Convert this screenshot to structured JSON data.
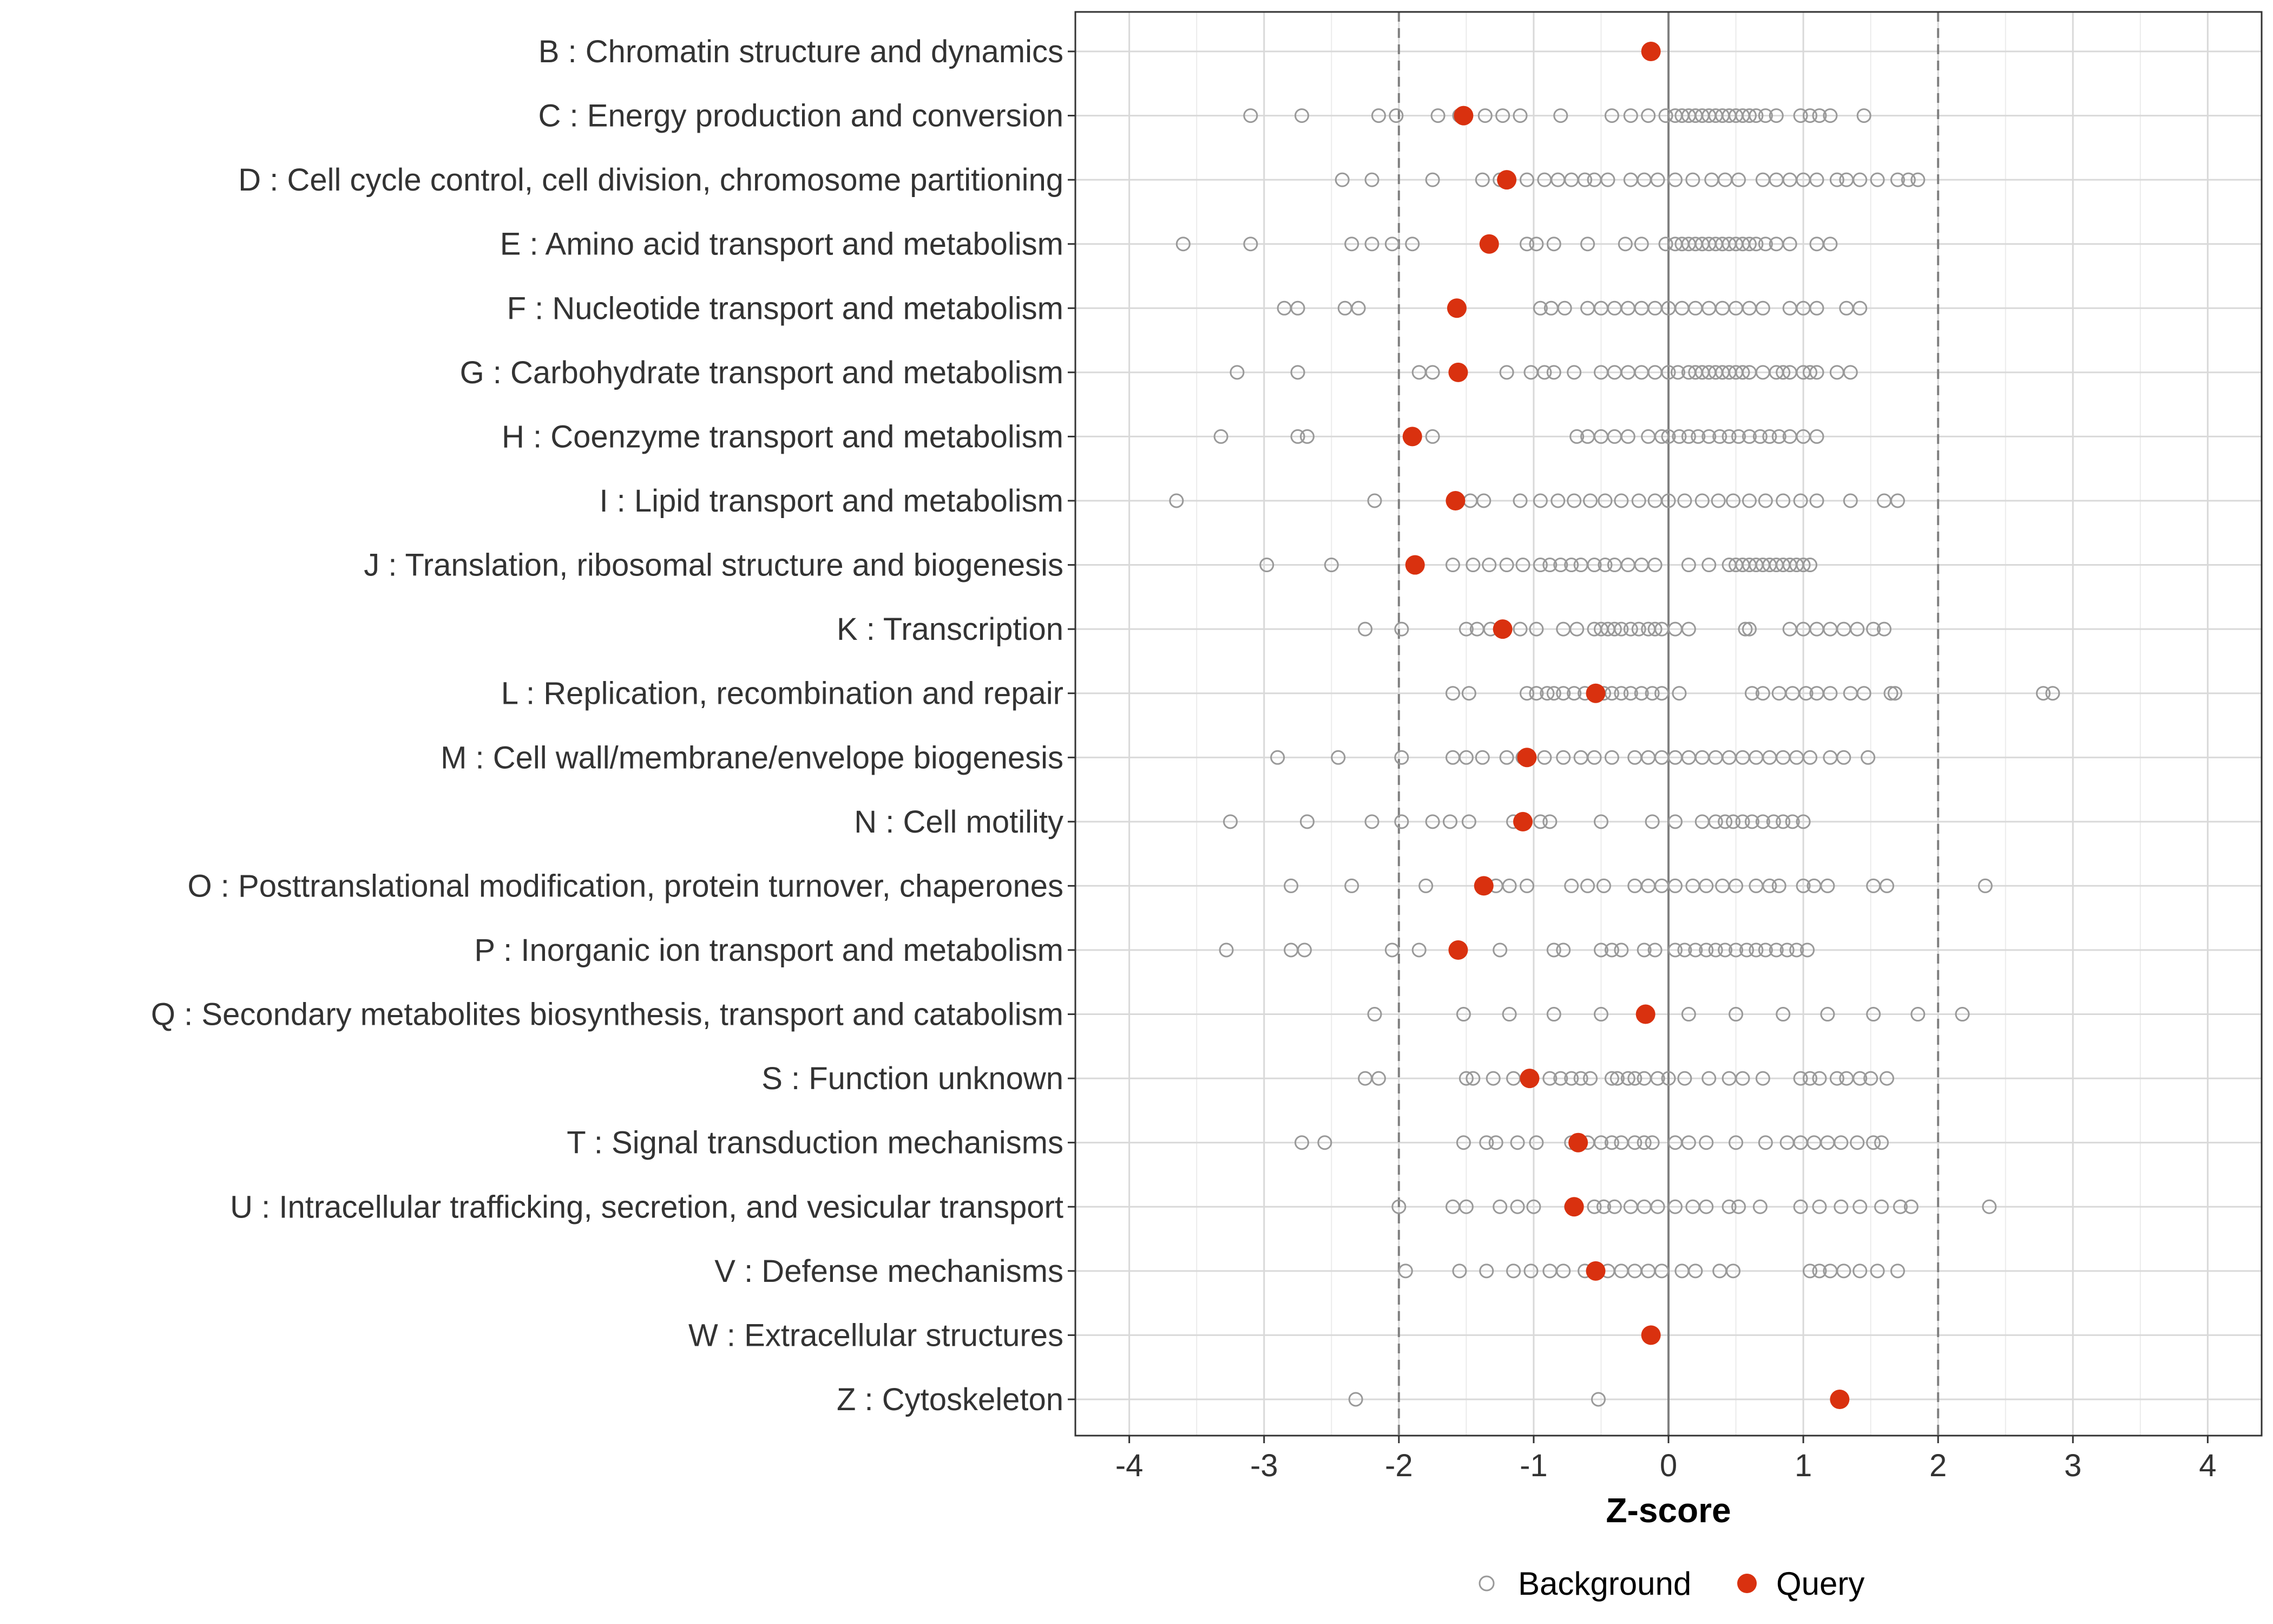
{
  "chart_data": {
    "type": "scatter",
    "xlabel": "Z-score",
    "xlim": [
      -4.4,
      4.4
    ],
    "x_ticks": [
      -4,
      -3,
      -2,
      -1,
      0,
      1,
      2,
      3,
      4
    ],
    "x_tick_labels": [
      "-4",
      "-3",
      "-2",
      "-1",
      "0",
      "1",
      "2",
      "3",
      "4"
    ],
    "reference_lines": [
      {
        "x": -2,
        "style": "dashed"
      },
      {
        "x": 0,
        "style": "solid"
      },
      {
        "x": 2,
        "style": "dashed"
      }
    ],
    "legend": {
      "position": "bottom",
      "entries": [
        {
          "label": "Background",
          "marker": "open-circle",
          "color": "#999999"
        },
        {
          "label": "Query",
          "marker": "filled-circle",
          "color": "#d9310f"
        }
      ]
    },
    "categories": [
      "B : Chromatin structure and dynamics",
      "C : Energy production and conversion",
      "D : Cell cycle control, cell division, chromosome partitioning",
      "E : Amino acid transport and metabolism",
      "F : Nucleotide transport and metabolism",
      "G : Carbohydrate transport and metabolism",
      "H : Coenzyme transport and metabolism",
      "I : Lipid transport and metabolism",
      "J : Translation, ribosomal structure and biogenesis",
      "K : Transcription",
      "L : Replication, recombination and repair",
      "M : Cell wall/membrane/envelope biogenesis",
      "N : Cell motility",
      "O : Posttranslational modification, protein turnover, chaperones",
      "P : Inorganic ion transport and metabolism",
      "Q : Secondary metabolites biosynthesis, transport and catabolism",
      "S : Function unknown",
      "T : Signal transduction mechanisms",
      "U : Intracellular trafficking, secretion, and vesicular transport",
      "V : Defense mechanisms",
      "W : Extracellular structures",
      "Z : Cytoskeleton"
    ],
    "series": [
      {
        "name": "Query",
        "values": [
          -0.13,
          -1.52,
          -1.2,
          -1.33,
          -1.57,
          -1.56,
          -1.9,
          -1.58,
          -1.88,
          -1.23,
          -0.54,
          -1.05,
          -1.08,
          -1.37,
          -1.56,
          -0.17,
          -1.03,
          -0.67,
          -0.7,
          -0.54,
          -0.13,
          1.27
        ]
      },
      {
        "name": "Background",
        "values": [
          [],
          [
            -3.1,
            -2.72,
            -2.15,
            -2.02,
            -1.71,
            -1.55,
            -1.36,
            -1.23,
            -1.1,
            -0.8,
            -0.42,
            -0.28,
            -0.15,
            -0.02,
            0.05,
            0.1,
            0.15,
            0.2,
            0.25,
            0.3,
            0.35,
            0.4,
            0.45,
            0.5,
            0.55,
            0.6,
            0.65,
            0.72,
            0.8,
            0.98,
            1.05,
            1.12,
            1.2,
            1.45
          ],
          [
            -2.42,
            -2.2,
            -1.75,
            -1.38,
            -1.25,
            -1.05,
            -0.92,
            -0.82,
            -0.72,
            -0.62,
            -0.55,
            -0.45,
            -0.28,
            -0.18,
            -0.08,
            0.05,
            0.18,
            0.32,
            0.42,
            0.52,
            0.7,
            0.8,
            0.9,
            1.0,
            1.1,
            1.25,
            1.32,
            1.42,
            1.55,
            1.7,
            1.78,
            1.85
          ],
          [
            -3.6,
            -3.1,
            -2.35,
            -2.2,
            -2.05,
            -1.9,
            -1.05,
            -0.98,
            -0.85,
            -0.6,
            -0.32,
            -0.2,
            -0.02,
            0.05,
            0.1,
            0.15,
            0.2,
            0.25,
            0.3,
            0.35,
            0.4,
            0.45,
            0.5,
            0.55,
            0.6,
            0.65,
            0.72,
            0.8,
            0.9,
            1.1,
            1.2
          ],
          [
            -2.85,
            -2.75,
            -2.4,
            -2.3,
            -0.95,
            -0.87,
            -0.77,
            -0.6,
            -0.5,
            -0.4,
            -0.3,
            -0.2,
            -0.1,
            0.0,
            0.1,
            0.2,
            0.3,
            0.4,
            0.5,
            0.6,
            0.7,
            0.9,
            1.0,
            1.1,
            1.32,
            1.42
          ],
          [
            -3.2,
            -2.75,
            -1.85,
            -1.75,
            -1.55,
            -1.2,
            -1.02,
            -0.92,
            -0.85,
            -0.7,
            -0.5,
            -0.4,
            -0.3,
            -0.2,
            -0.1,
            0.0,
            0.07,
            0.15,
            0.2,
            0.25,
            0.3,
            0.35,
            0.4,
            0.45,
            0.5,
            0.55,
            0.6,
            0.7,
            0.8,
            0.85,
            0.9,
            1.0,
            1.05,
            1.1,
            1.25,
            1.35
          ],
          [
            -3.32,
            -2.75,
            -2.68,
            -1.75,
            -0.68,
            -0.6,
            -0.5,
            -0.4,
            -0.3,
            -0.15,
            -0.05,
            0.0,
            0.08,
            0.15,
            0.22,
            0.3,
            0.38,
            0.45,
            0.52,
            0.6,
            0.68,
            0.75,
            0.82,
            0.9,
            1.0,
            1.1
          ],
          [
            -3.65,
            -2.18,
            -1.47,
            -1.37,
            -1.1,
            -0.95,
            -0.82,
            -0.7,
            -0.58,
            -0.47,
            -0.35,
            -0.22,
            -0.1,
            0.0,
            0.12,
            0.25,
            0.37,
            0.48,
            0.6,
            0.72,
            0.85,
            0.98,
            1.1,
            1.35,
            1.6,
            1.7
          ],
          [
            -2.98,
            -2.5,
            -1.6,
            -1.45,
            -1.33,
            -1.2,
            -1.08,
            -0.95,
            -0.88,
            -0.8,
            -0.72,
            -0.65,
            -0.55,
            -0.47,
            -0.4,
            -0.3,
            -0.2,
            -0.1,
            0.15,
            0.3,
            0.45,
            0.5,
            0.55,
            0.6,
            0.65,
            0.7,
            0.75,
            0.8,
            0.85,
            0.9,
            0.95,
            1.0,
            1.05
          ],
          [
            -2.25,
            -1.98,
            -1.5,
            -1.42,
            -1.32,
            -1.1,
            -0.98,
            -0.78,
            -0.68,
            -0.55,
            -0.5,
            -0.45,
            -0.4,
            -0.35,
            -0.28,
            -0.22,
            -0.15,
            -0.1,
            -0.05,
            0.05,
            0.15,
            0.57,
            0.6,
            0.9,
            1.0,
            1.1,
            1.2,
            1.3,
            1.4,
            1.52,
            1.6
          ],
          [
            -1.6,
            -1.48,
            -1.05,
            -0.98,
            -0.9,
            -0.85,
            -0.78,
            -0.7,
            -0.62,
            -0.55,
            -0.48,
            -0.42,
            -0.35,
            -0.28,
            -0.2,
            -0.12,
            -0.05,
            0.08,
            0.62,
            0.7,
            0.82,
            0.92,
            1.02,
            1.1,
            1.2,
            1.35,
            1.45,
            1.65,
            1.68,
            2.78,
            2.85
          ],
          [
            -2.9,
            -2.45,
            -1.98,
            -1.6,
            -1.5,
            -1.38,
            -1.2,
            -1.08,
            -0.92,
            -0.78,
            -0.65,
            -0.55,
            -0.42,
            -0.25,
            -0.15,
            -0.05,
            0.05,
            0.15,
            0.25,
            0.35,
            0.45,
            0.55,
            0.65,
            0.75,
            0.85,
            0.95,
            1.05,
            1.2,
            1.3,
            1.48
          ],
          [
            -3.25,
            -2.68,
            -2.2,
            -1.98,
            -1.75,
            -1.62,
            -1.48,
            -1.15,
            -0.95,
            -0.88,
            -0.5,
            -0.12,
            0.05,
            0.25,
            0.35,
            0.42,
            0.48,
            0.55,
            0.62,
            0.7,
            0.78,
            0.85,
            0.92,
            1.0
          ],
          [
            -2.8,
            -2.35,
            -1.8,
            -1.28,
            -1.18,
            -1.05,
            -0.72,
            -0.6,
            -0.48,
            -0.25,
            -0.15,
            -0.05,
            0.05,
            0.18,
            0.28,
            0.4,
            0.5,
            0.65,
            0.75,
            0.82,
            1.0,
            1.08,
            1.18,
            1.52,
            1.62,
            2.35
          ],
          [
            -3.28,
            -2.8,
            -2.7,
            -2.05,
            -1.85,
            -1.25,
            -0.85,
            -0.78,
            -0.5,
            -0.42,
            -0.35,
            -0.18,
            -0.1,
            0.05,
            0.12,
            0.2,
            0.28,
            0.35,
            0.42,
            0.5,
            0.58,
            0.65,
            0.72,
            0.8,
            0.88,
            0.95,
            1.03
          ],
          [
            -2.18,
            -1.52,
            -1.18,
            -0.85,
            -0.5,
            0.15,
            0.5,
            0.85,
            1.18,
            1.52,
            1.85,
            2.18
          ],
          [
            -2.25,
            -2.15,
            -1.5,
            -1.45,
            -1.3,
            -1.15,
            -1.05,
            -0.88,
            -0.8,
            -0.72,
            -0.65,
            -0.58,
            -0.42,
            -0.38,
            -0.3,
            -0.25,
            -0.18,
            -0.08,
            0.0,
            0.12,
            0.3,
            0.45,
            0.55,
            0.7,
            0.98,
            1.05,
            1.12,
            1.25,
            1.32,
            1.42,
            1.5,
            1.62
          ],
          [
            -2.72,
            -2.55,
            -1.52,
            -1.35,
            -1.28,
            -1.12,
            -0.98,
            -0.72,
            -0.6,
            -0.5,
            -0.42,
            -0.35,
            -0.25,
            -0.18,
            -0.12,
            0.05,
            0.15,
            0.28,
            0.5,
            0.72,
            0.88,
            0.98,
            1.08,
            1.18,
            1.28,
            1.4,
            1.52,
            1.58
          ],
          [
            -2.0,
            -1.6,
            -1.5,
            -1.25,
            -1.12,
            -1.0,
            -0.72,
            -0.55,
            -0.48,
            -0.4,
            -0.28,
            -0.18,
            -0.08,
            0.05,
            0.18,
            0.28,
            0.45,
            0.52,
            0.68,
            0.98,
            1.12,
            1.28,
            1.42,
            1.58,
            1.72,
            1.8,
            2.38
          ],
          [
            -1.95,
            -1.55,
            -1.35,
            -1.15,
            -1.02,
            -0.88,
            -0.78,
            -0.62,
            -0.45,
            -0.35,
            -0.25,
            -0.15,
            -0.05,
            0.1,
            0.2,
            0.38,
            0.48,
            1.05,
            1.12,
            1.2,
            1.3,
            1.42,
            1.55,
            1.7
          ],
          [],
          [
            -2.32,
            -0.52
          ]
        ]
      }
    ]
  }
}
